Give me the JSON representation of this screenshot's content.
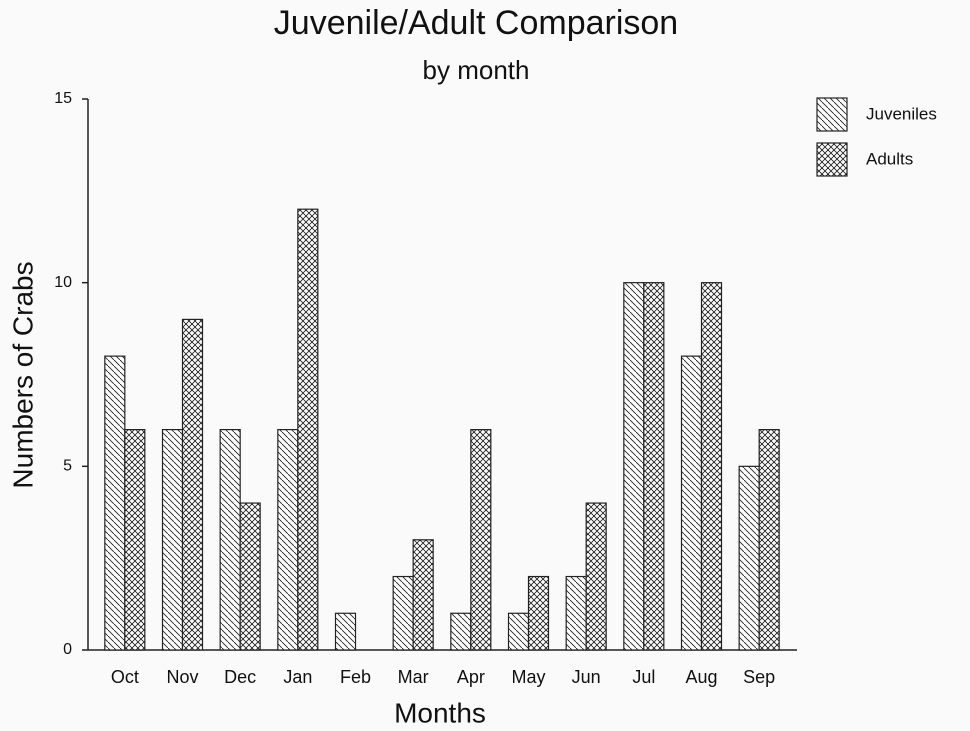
{
  "chart_data": {
    "type": "bar",
    "title": "Juvenile/Adult Comparison",
    "subtitle": "by month",
    "xlabel": "Months",
    "ylabel": "Numbers of Crabs",
    "categories": [
      "Oct",
      "Nov",
      "Dec",
      "Jan",
      "Feb",
      "Mar",
      "Apr",
      "May",
      "Jun",
      "Jul",
      "Aug",
      "Sep"
    ],
    "series": [
      {
        "name": "Juveniles",
        "color": "#222222",
        "pattern": "diagonal",
        "values": [
          8,
          6,
          6,
          6,
          1,
          2,
          1,
          1,
          2,
          10,
          8,
          5
        ]
      },
      {
        "name": "Adults",
        "color": "#222222",
        "pattern": "crosshatch",
        "values": [
          6,
          9,
          4,
          12,
          0,
          3,
          6,
          2,
          4,
          10,
          10,
          6
        ]
      }
    ],
    "ylim": [
      0,
      15
    ],
    "yticks": [
      0,
      5,
      10,
      15
    ],
    "grid": false,
    "legend": "upper right"
  }
}
